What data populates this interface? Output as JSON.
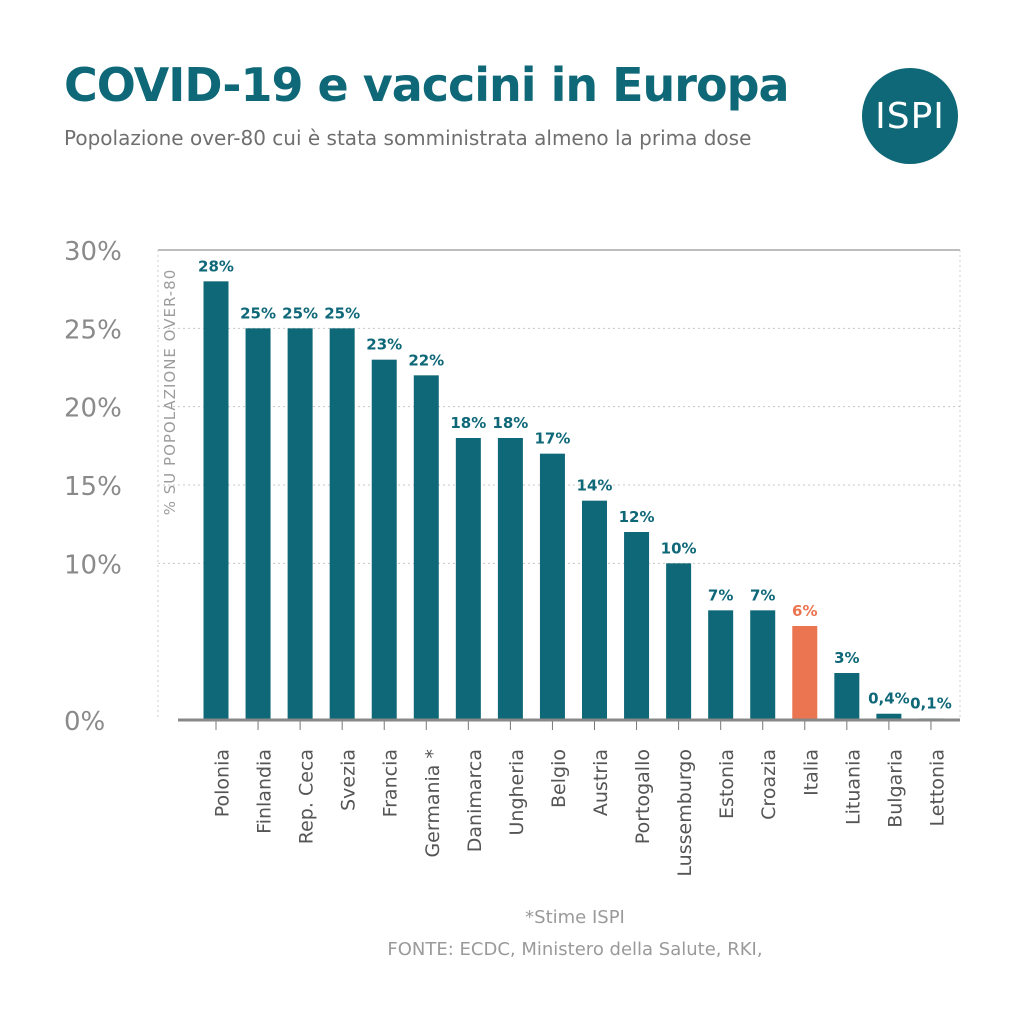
{
  "header": {
    "title": "COVID-19 e vaccini in Europa",
    "subtitle": "Popolazione over-80 cui è stata somministrata almeno la prima dose",
    "logo_text": "ISPI"
  },
  "footer": {
    "note": "*Stime ISPI",
    "source": "FONTE: ECDC, Ministero della Salute, RKI,"
  },
  "colors": {
    "bar": "#0f6878",
    "highlight": "#ea7550",
    "brand": "#0f6878"
  },
  "chart_data": {
    "type": "bar",
    "title": "COVID-19 e vaccini in Europa",
    "subtitle": "Popolazione over-80 cui è stata somministrata almeno la prima dose",
    "xlabel": "",
    "ylabel": "% SU POPOLAZIONE OVER-80",
    "ylim": [
      0,
      30
    ],
    "yticks": [
      0,
      10,
      15,
      20,
      25,
      30
    ],
    "ytick_labels": [
      "0%",
      "10%",
      "15%",
      "20%",
      "25%",
      "30%"
    ],
    "grid": true,
    "categories": [
      "Polonia",
      "Finlandia",
      "Rep. Ceca",
      "Svezia",
      "Francia",
      "Germania *",
      "Danimarca",
      "Ungheria",
      "Belgio",
      "Austria",
      "Portogallo",
      "Lussemburgo",
      "Estonia",
      "Croazia",
      "Italia",
      "Lituania",
      "Bulgaria",
      "Lettonia"
    ],
    "values": [
      28,
      25,
      25,
      25,
      23,
      22,
      18,
      18,
      17,
      14,
      12,
      10,
      7,
      7,
      6,
      3,
      0.4,
      0.1
    ],
    "data_labels": [
      "28%",
      "25%",
      "25%",
      "25%",
      "23%",
      "22%",
      "18%",
      "18%",
      "17%",
      "14%",
      "12%",
      "10%",
      "7%",
      "7%",
      "6%",
      "3%",
      "0,4%",
      "0,1%"
    ],
    "highlight_category": "Italia"
  }
}
